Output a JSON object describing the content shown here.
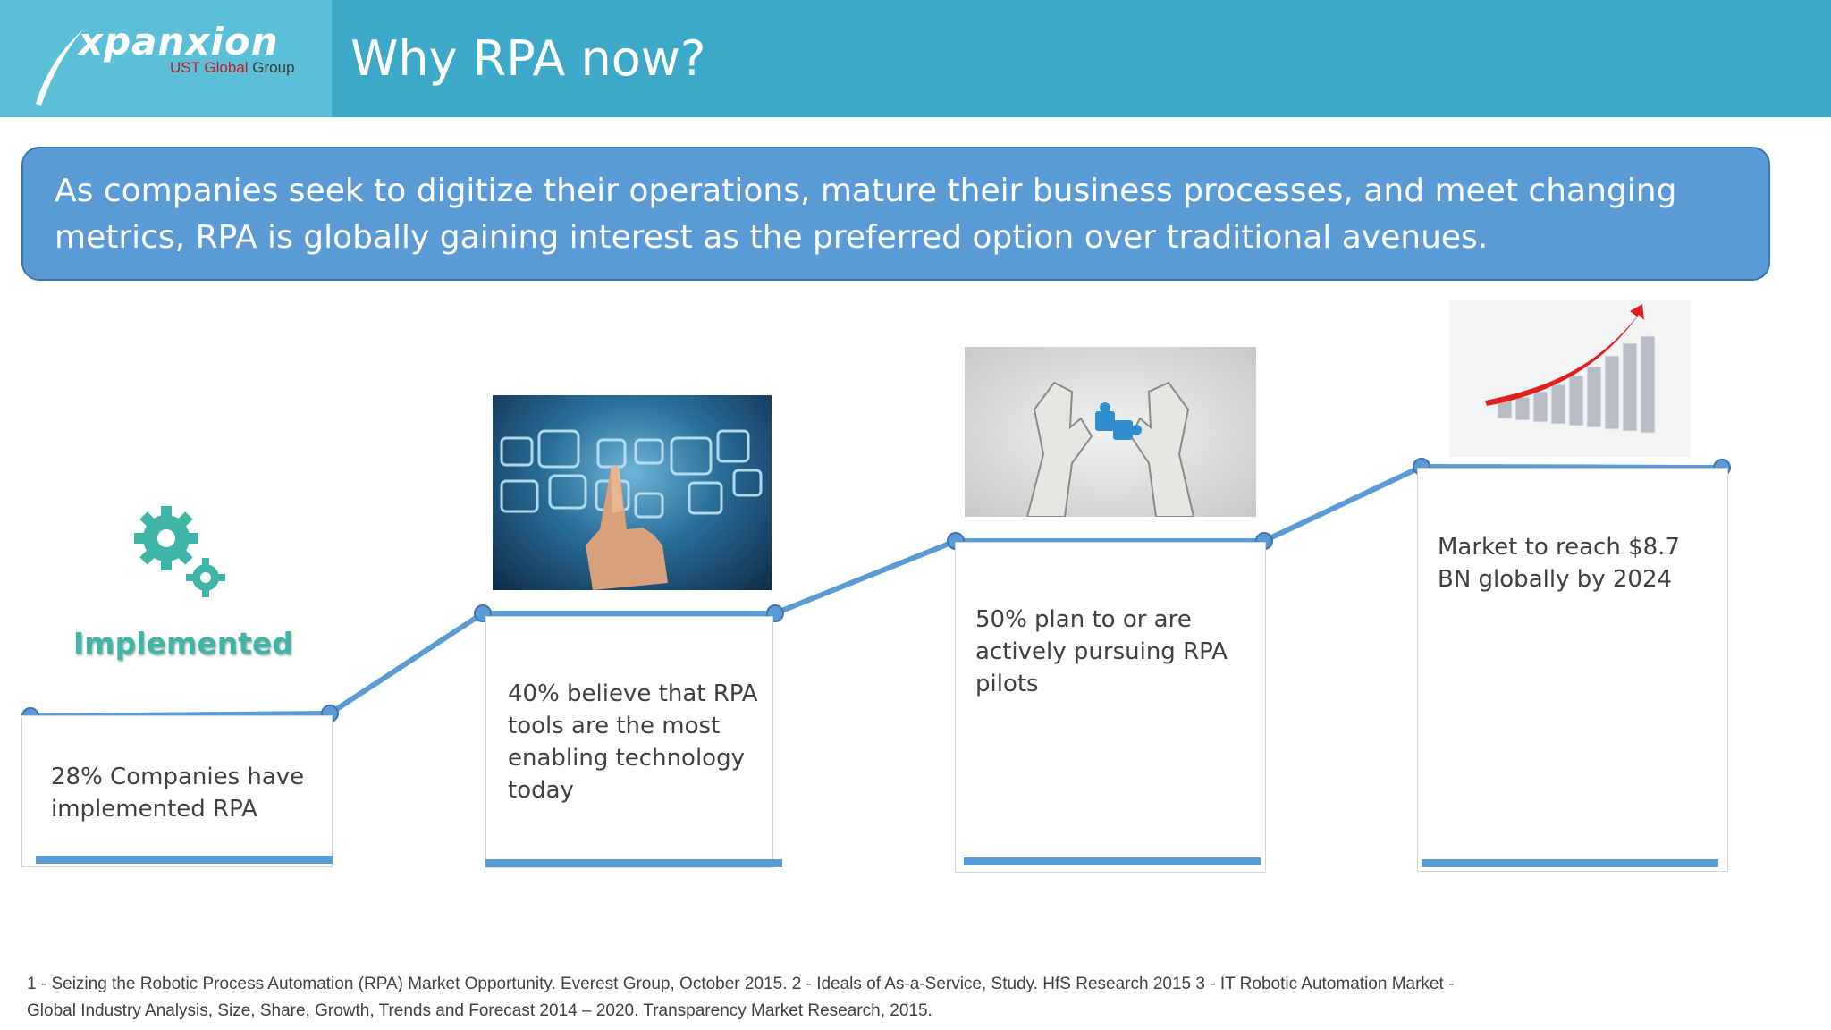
{
  "header": {
    "logo_name": "xpanxion",
    "logo_sub_brand": "UST Global",
    "logo_sub_group": "Group",
    "title": "Why RPA now?"
  },
  "banner": {
    "text": "As companies seek to digitize their operations, mature their business processes, and meet changing metrics, RPA is globally gaining interest as the preferred option over traditional avenues."
  },
  "steps": [
    {
      "label": "Implemented",
      "text": "28% Companies have\nimplemented RPA",
      "icon": "gears-icon"
    },
    {
      "text": " 40% believe that RPA\ntools are the most\nenabling technology\ntoday",
      "icon": "touchscreen-hand-photo"
    },
    {
      "text": " 50% plan to or are\nactively pursuing RPA\npilots",
      "icon": "robot-hands-puzzle-photo"
    },
    {
      "text": " Market to reach $8.7\nBN globally by 2024",
      "icon": "growth-bar-chart-arrow-photo"
    }
  ],
  "footer": {
    "line1": " 1 - Seizing the Robotic Process Automation (RPA) Market Opportunity. Everest Group, October 2015.   2 - Ideals of As-a-Service, Study. HfS Research 2015  3 - IT Robotic Automation Market -",
    "line2": "Global Industry Analysis, Size, Share, Growth, Trends and Forecast 2014 – 2020. Transparency Market Research, 2015."
  },
  "colors": {
    "header": "#3ea8c8",
    "logo_box": "#5bbfd8",
    "banner": "#5b9bd5",
    "accent_line": "#5b9bd5",
    "implemented": "#3fb5a8"
  }
}
